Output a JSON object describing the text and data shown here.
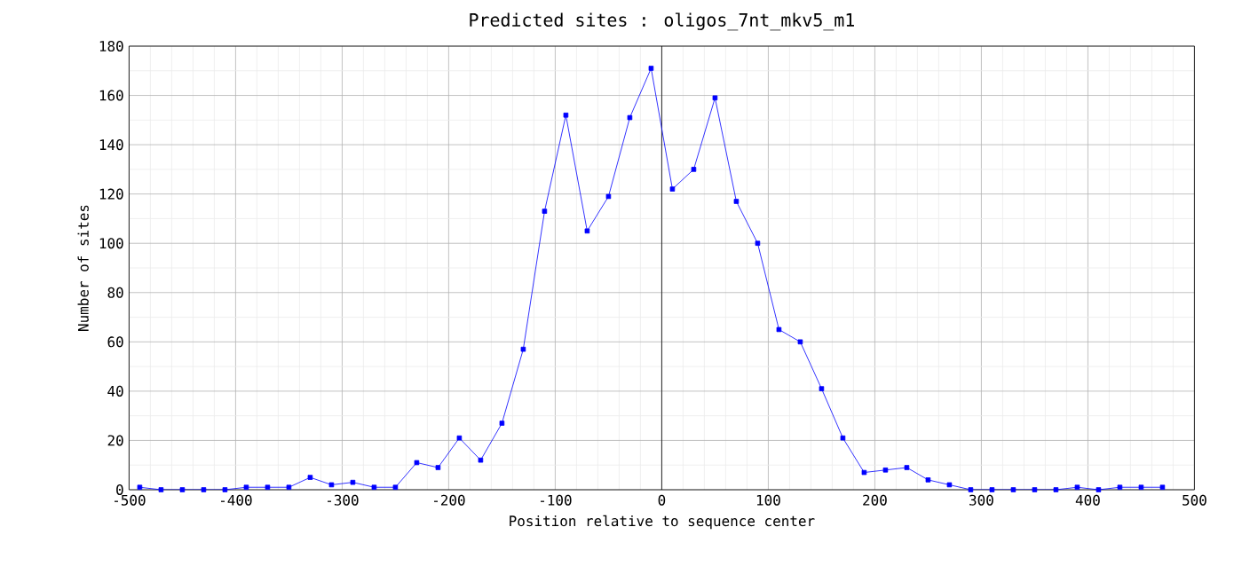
{
  "chart_data": {
    "type": "line",
    "title": "Predicted sites : oligos_7nt_mkv5_m1",
    "xlabel": "Position relative to sequence center",
    "ylabel": "Number of sites",
    "x": [
      -490,
      -470,
      -450,
      -430,
      -410,
      -390,
      -370,
      -350,
      -330,
      -310,
      -290,
      -270,
      -250,
      -230,
      -210,
      -190,
      -170,
      -150,
      -130,
      -110,
      -90,
      -70,
      -50,
      -30,
      -10,
      10,
      30,
      50,
      70,
      90,
      110,
      130,
      150,
      170,
      190,
      210,
      230,
      250,
      270,
      290,
      310,
      330,
      350,
      370,
      390,
      410,
      430,
      450,
      470
    ],
    "series": [
      {
        "color": "#0000ff",
        "values": [
          1,
          0,
          0,
          0,
          0,
          1,
          1,
          1,
          5,
          2,
          3,
          1,
          1,
          11,
          9,
          21,
          12,
          27,
          57,
          113,
          152,
          105,
          119,
          151,
          171,
          122,
          130,
          159,
          117,
          100,
          65,
          60,
          41,
          21,
          7,
          8,
          9,
          4,
          2,
          0,
          0,
          0,
          0,
          0,
          1,
          0,
          1,
          1,
          1
        ]
      }
    ],
    "xlim": [
      -500,
      500
    ],
    "xticks": [
      -500,
      -400,
      -300,
      -200,
      -100,
      0,
      100,
      200,
      300,
      400,
      500
    ],
    "ylim": [
      0,
      180
    ],
    "yticks": [
      0,
      20,
      40,
      60,
      80,
      100,
      120,
      140,
      160,
      180
    ],
    "grid": true,
    "marker": "square",
    "line_style": "solid",
    "ref_lines": [
      {
        "axis": "x",
        "value": 0,
        "color": "#000000"
      }
    ]
  }
}
